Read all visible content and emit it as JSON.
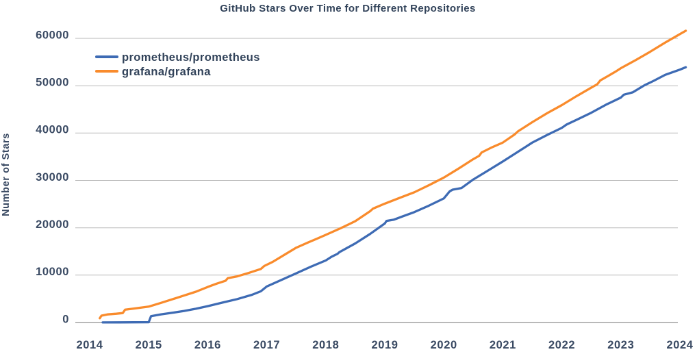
{
  "colors": {
    "text": "#32435a",
    "tick_text": "#3a4a63",
    "gridline": "#b9b9b9",
    "zero_line": "#8f8f8f",
    "background": "#ffffff",
    "prometheus_line": "#3e6bb4",
    "grafana_line": "#f98b2c"
  },
  "chart_data": {
    "type": "line",
    "title": "GitHub Stars Over Time for Different Repositories",
    "xlabel": "",
    "ylabel": "Number of Stars",
    "x_ticks": [
      2014,
      2015,
      2016,
      2017,
      2018,
      2019,
      2020,
      2021,
      2022,
      2023,
      2024
    ],
    "y_ticks": [
      0,
      10000,
      20000,
      30000,
      40000,
      50000,
      60000
    ],
    "xlim": [
      2013.76,
      2024.2
    ],
    "ylim": [
      0,
      60000
    ],
    "grid": "horizontal-only",
    "legend_position": "upper-left",
    "series": [
      {
        "name": "prometheus/prometheus",
        "color": "#3e6bb4",
        "points": [
          [
            2014.22,
            20
          ],
          [
            2014.5,
            30
          ],
          [
            2014.75,
            40
          ],
          [
            2015.0,
            60
          ],
          [
            2015.04,
            1350
          ],
          [
            2015.2,
            1700
          ],
          [
            2015.4,
            2050
          ],
          [
            2015.6,
            2450
          ],
          [
            2015.8,
            2900
          ],
          [
            2016.0,
            3450
          ],
          [
            2016.25,
            4200
          ],
          [
            2016.5,
            4950
          ],
          [
            2016.75,
            5850
          ],
          [
            2016.9,
            6600
          ],
          [
            2017.0,
            7600
          ],
          [
            2017.25,
            9000
          ],
          [
            2017.5,
            10400
          ],
          [
            2017.75,
            11800
          ],
          [
            2018.0,
            13100
          ],
          [
            2018.1,
            13900
          ],
          [
            2018.2,
            14500
          ],
          [
            2018.23,
            14850
          ],
          [
            2018.5,
            16700
          ],
          [
            2018.75,
            18700
          ],
          [
            2019.0,
            20900
          ],
          [
            2019.03,
            21450
          ],
          [
            2019.15,
            21700
          ],
          [
            2019.3,
            22400
          ],
          [
            2019.5,
            23300
          ],
          [
            2019.75,
            24700
          ],
          [
            2020.0,
            26200
          ],
          [
            2020.1,
            27700
          ],
          [
            2020.15,
            28050
          ],
          [
            2020.3,
            28400
          ],
          [
            2020.5,
            30200
          ],
          [
            2020.75,
            32100
          ],
          [
            2021.0,
            34000
          ],
          [
            2021.25,
            36000
          ],
          [
            2021.5,
            38000
          ],
          [
            2021.75,
            39600
          ],
          [
            2022.0,
            41100
          ],
          [
            2022.08,
            41800
          ],
          [
            2022.25,
            42800
          ],
          [
            2022.5,
            44300
          ],
          [
            2022.75,
            46000
          ],
          [
            2023.0,
            47500
          ],
          [
            2023.05,
            48100
          ],
          [
            2023.2,
            48600
          ],
          [
            2023.4,
            50100
          ],
          [
            2023.55,
            51000
          ],
          [
            2023.75,
            52300
          ],
          [
            2024.0,
            53400
          ],
          [
            2024.1,
            53900
          ]
        ]
      },
      {
        "name": "grafana/grafana",
        "color": "#f98b2c",
        "points": [
          [
            2014.17,
            900
          ],
          [
            2014.2,
            1450
          ],
          [
            2014.3,
            1700
          ],
          [
            2014.45,
            1850
          ],
          [
            2014.56,
            2000
          ],
          [
            2014.6,
            2700
          ],
          [
            2014.75,
            2950
          ],
          [
            2015.0,
            3350
          ],
          [
            2015.2,
            4100
          ],
          [
            2015.4,
            4900
          ],
          [
            2015.6,
            5700
          ],
          [
            2015.8,
            6500
          ],
          [
            2016.0,
            7500
          ],
          [
            2016.15,
            8200
          ],
          [
            2016.3,
            8800
          ],
          [
            2016.34,
            9350
          ],
          [
            2016.5,
            9750
          ],
          [
            2016.7,
            10500
          ],
          [
            2016.9,
            11300
          ],
          [
            2016.96,
            11950
          ],
          [
            2017.1,
            12800
          ],
          [
            2017.3,
            14300
          ],
          [
            2017.5,
            15800
          ],
          [
            2017.7,
            16900
          ],
          [
            2017.85,
            17700
          ],
          [
            2018.0,
            18500
          ],
          [
            2018.25,
            19900
          ],
          [
            2018.5,
            21400
          ],
          [
            2018.75,
            23500
          ],
          [
            2018.8,
            24050
          ],
          [
            2019.0,
            25100
          ],
          [
            2019.25,
            26300
          ],
          [
            2019.5,
            27500
          ],
          [
            2019.75,
            29000
          ],
          [
            2020.0,
            30600
          ],
          [
            2020.25,
            32500
          ],
          [
            2020.5,
            34500
          ],
          [
            2020.6,
            35200
          ],
          [
            2020.64,
            35900
          ],
          [
            2020.8,
            36900
          ],
          [
            2021.0,
            38000
          ],
          [
            2021.2,
            39700
          ],
          [
            2021.26,
            40400
          ],
          [
            2021.5,
            42300
          ],
          [
            2021.75,
            44200
          ],
          [
            2022.0,
            45900
          ],
          [
            2022.25,
            47800
          ],
          [
            2022.5,
            49600
          ],
          [
            2022.6,
            50300
          ],
          [
            2022.65,
            51100
          ],
          [
            2022.9,
            52900
          ],
          [
            2023.0,
            53700
          ],
          [
            2023.25,
            55400
          ],
          [
            2023.5,
            57200
          ],
          [
            2023.75,
            59100
          ],
          [
            2024.0,
            60900
          ],
          [
            2024.1,
            61600
          ]
        ]
      }
    ]
  }
}
